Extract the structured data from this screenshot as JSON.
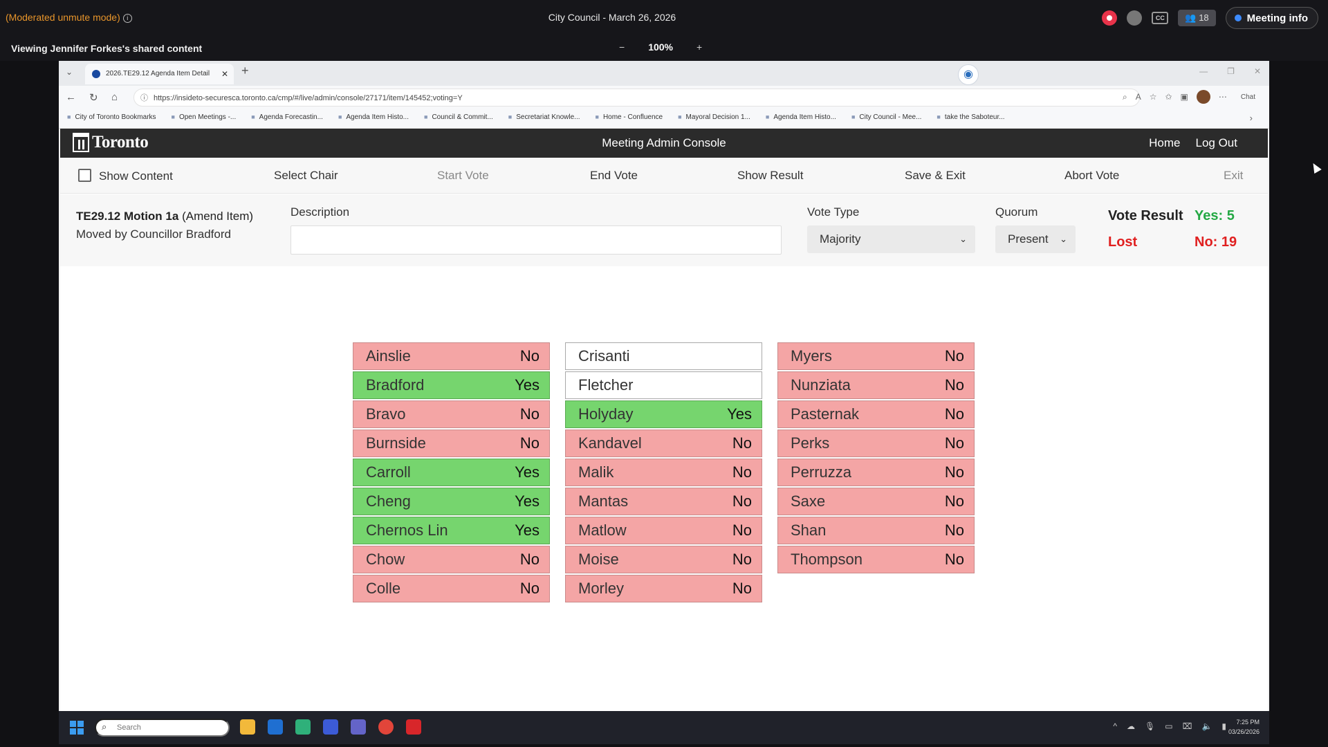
{
  "meeting": {
    "mode": "(Moderated unmute mode)",
    "title": "City Council - March 26, 2026",
    "participants": "18",
    "cc": "CC",
    "info_button": "Meeting info",
    "viewing": "Viewing Jennifer Forkes's shared content",
    "zoom": "100%",
    "zoom_minus": "−",
    "zoom_plus": "+"
  },
  "browser": {
    "tab_title": "2026.TE29.12 Agenda Item Detail",
    "url": "https://insideto-securesca.toronto.ca/cmp/#/live/admin/console/27171/item/145452;voting=Y",
    "chat_label": "Chat",
    "bookmarks": [
      "City of Toronto Bookmarks",
      "Open Meetings -...",
      "Agenda Forecastin...",
      "Agenda Item Histo...",
      "Council & Commit...",
      "Secretariat Knowle...",
      "Home - Confluence",
      "Mayoral Decision 1...",
      "Agenda Item Histo...",
      "City Council - Mee...",
      "take the Saboteur..."
    ]
  },
  "app": {
    "logo": "Toronto",
    "title": "Meeting Admin Console",
    "nav": {
      "home": "Home",
      "logout": "Log Out"
    },
    "toolbar": {
      "show_content": "Show Content",
      "select_chair": "Select Chair",
      "start_vote": "Start Vote",
      "end_vote": "End Vote",
      "show_result": "Show Result",
      "save_exit": "Save & Exit",
      "abort_vote": "Abort Vote",
      "exit": "Exit"
    },
    "motion": {
      "id": "TE29.12 Motion 1a",
      "type": "(Amend Item)",
      "mover": "Moved by Councillor Bradford"
    },
    "description_label": "Description",
    "description_value": "",
    "vote_type_label": "Vote Type",
    "vote_type_value": "Majority",
    "quorum_label": "Quorum",
    "quorum_value": "Present",
    "result_label": "Vote Result",
    "result_status": "Lost",
    "yes_text": "Yes: 5",
    "no_text": "No: 19",
    "colors": {
      "yes": "#76d56e",
      "no": "#f4a5a5",
      "blank": "#ffffff"
    }
  },
  "votes": [
    [
      {
        "name": "Ainslie",
        "vote": "No"
      },
      {
        "name": "Bradford",
        "vote": "Yes"
      },
      {
        "name": "Bravo",
        "vote": "No"
      },
      {
        "name": "Burnside",
        "vote": "No"
      },
      {
        "name": "Carroll",
        "vote": "Yes"
      },
      {
        "name": "Cheng",
        "vote": "Yes"
      },
      {
        "name": "Chernos Lin",
        "vote": "Yes"
      },
      {
        "name": "Chow",
        "vote": "No"
      },
      {
        "name": "Colle",
        "vote": "No"
      }
    ],
    [
      {
        "name": "Crisanti",
        "vote": ""
      },
      {
        "name": "Fletcher",
        "vote": ""
      },
      {
        "name": "Holyday",
        "vote": "Yes"
      },
      {
        "name": "Kandavel",
        "vote": "No"
      },
      {
        "name": "Malik",
        "vote": "No"
      },
      {
        "name": "Mantas",
        "vote": "No"
      },
      {
        "name": "Matlow",
        "vote": "No"
      },
      {
        "name": "Moise",
        "vote": "No"
      },
      {
        "name": "Morley",
        "vote": "No"
      }
    ],
    [
      {
        "name": "Myers",
        "vote": "No"
      },
      {
        "name": "Nunziata",
        "vote": "No"
      },
      {
        "name": "Pasternak",
        "vote": "No"
      },
      {
        "name": "Perks",
        "vote": "No"
      },
      {
        "name": "Perruzza",
        "vote": "No"
      },
      {
        "name": "Saxe",
        "vote": "No"
      },
      {
        "name": "Shan",
        "vote": "No"
      },
      {
        "name": "Thompson",
        "vote": "No"
      }
    ]
  ],
  "taskbar": {
    "search_placeholder": "Search",
    "time": "7:25 PM",
    "date": "03/26/2026"
  }
}
